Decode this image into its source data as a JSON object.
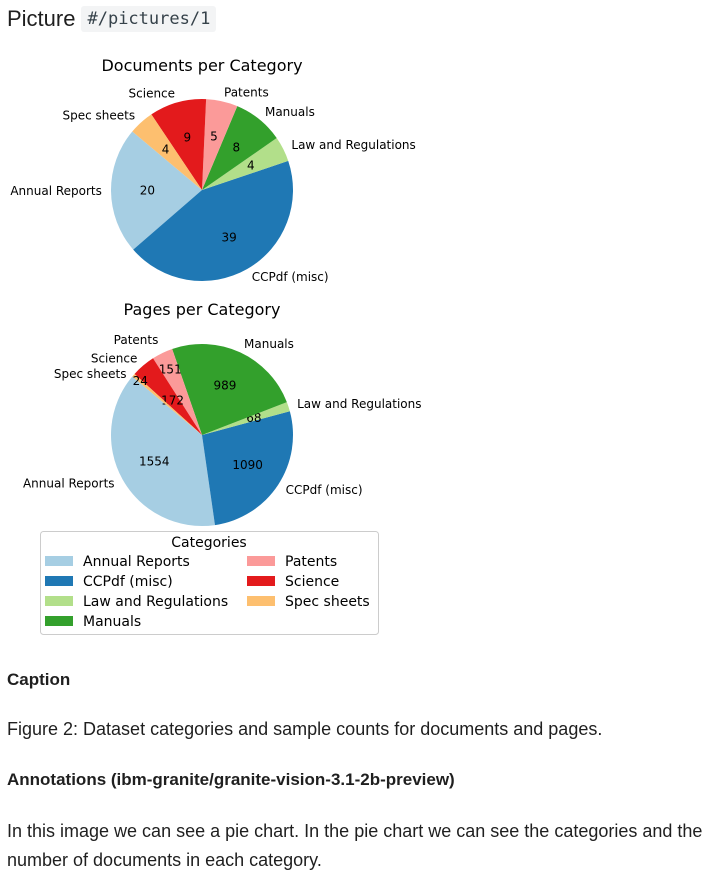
{
  "header": {
    "label": "Picture",
    "ref": "#/pictures/1"
  },
  "colors": {
    "Annual Reports": "#a6cee3",
    "CCPdf (misc)": "#1f78b4",
    "Law and Regulations": "#b2df8a",
    "Manuals": "#33a02c",
    "Patents": "#fb9a99",
    "Science": "#e31a1c",
    "Spec sheets": "#fdbf6f"
  },
  "chart_data": [
    {
      "type": "pie",
      "title": "Documents per Category",
      "start_angle": 140,
      "categories": [
        "Annual Reports",
        "CCPdf (misc)",
        "Law and Regulations",
        "Manuals",
        "Patents",
        "Science",
        "Spec sheets"
      ],
      "values": [
        20,
        39,
        4,
        8,
        5,
        9,
        4
      ]
    },
    {
      "type": "pie",
      "title": "Pages per Category",
      "start_angle": 140,
      "categories": [
        "Annual Reports",
        "CCPdf (misc)",
        "Law and Regulations",
        "Manuals",
        "Patents",
        "Science",
        "Spec sheets"
      ],
      "values": [
        1554,
        1090,
        68,
        989,
        151,
        172,
        24
      ],
      "legend": {
        "title": "Categories",
        "placement": "bottom",
        "entries": [
          "Annual Reports",
          "CCPdf (misc)",
          "Law and Regulations",
          "Manuals",
          "Patents",
          "Science",
          "Spec sheets"
        ]
      }
    }
  ],
  "caption": {
    "heading": "Caption",
    "text": "Figure 2: Dataset categories and sample counts for documents and pages."
  },
  "annotations": {
    "heading": "Annotations (ibm-granite/granite-vision-3.1-2b-preview)",
    "text": "In this image we can see a pie chart. In the pie chart we can see the categories and the number of documents in each category."
  }
}
